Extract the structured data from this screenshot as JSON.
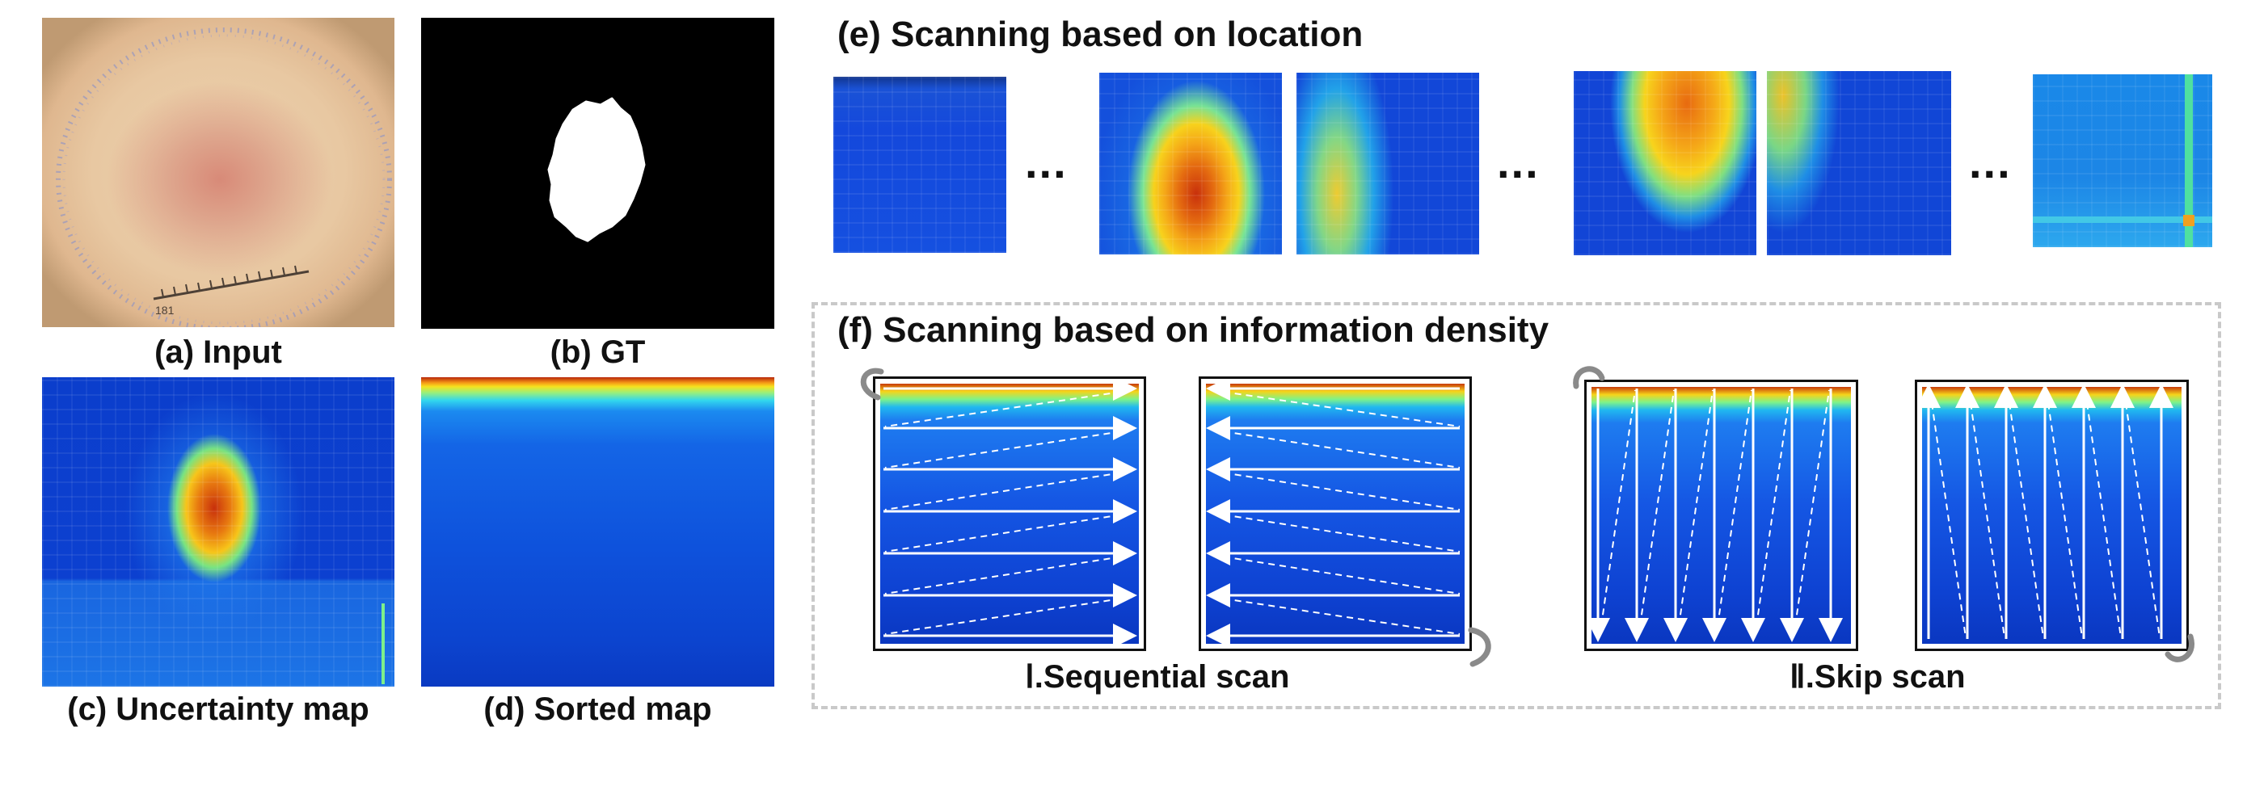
{
  "captions": {
    "a": "(a) Input",
    "b": "(b) GT",
    "c": "(c) Uncertainty map",
    "d": "(d) Sorted map"
  },
  "section_e": {
    "title": "(e) Scanning based on location",
    "ellipsis": "..."
  },
  "section_f": {
    "title": "(f) Scanning based on information density",
    "sequential_label": "Ⅰ.Sequential scan",
    "skip_label": "Ⅱ.Skip scan"
  },
  "input_ruler_text": "181",
  "colors": {
    "heat_low": "#0a3fd8",
    "heat_mid": "#3be0e8",
    "heat_high": "#f7c51a",
    "heat_peak": "#c82a0a",
    "dashed_frame": "#c9c9c9",
    "arrow": "#ffffff",
    "curl": "#8a8a8a"
  }
}
